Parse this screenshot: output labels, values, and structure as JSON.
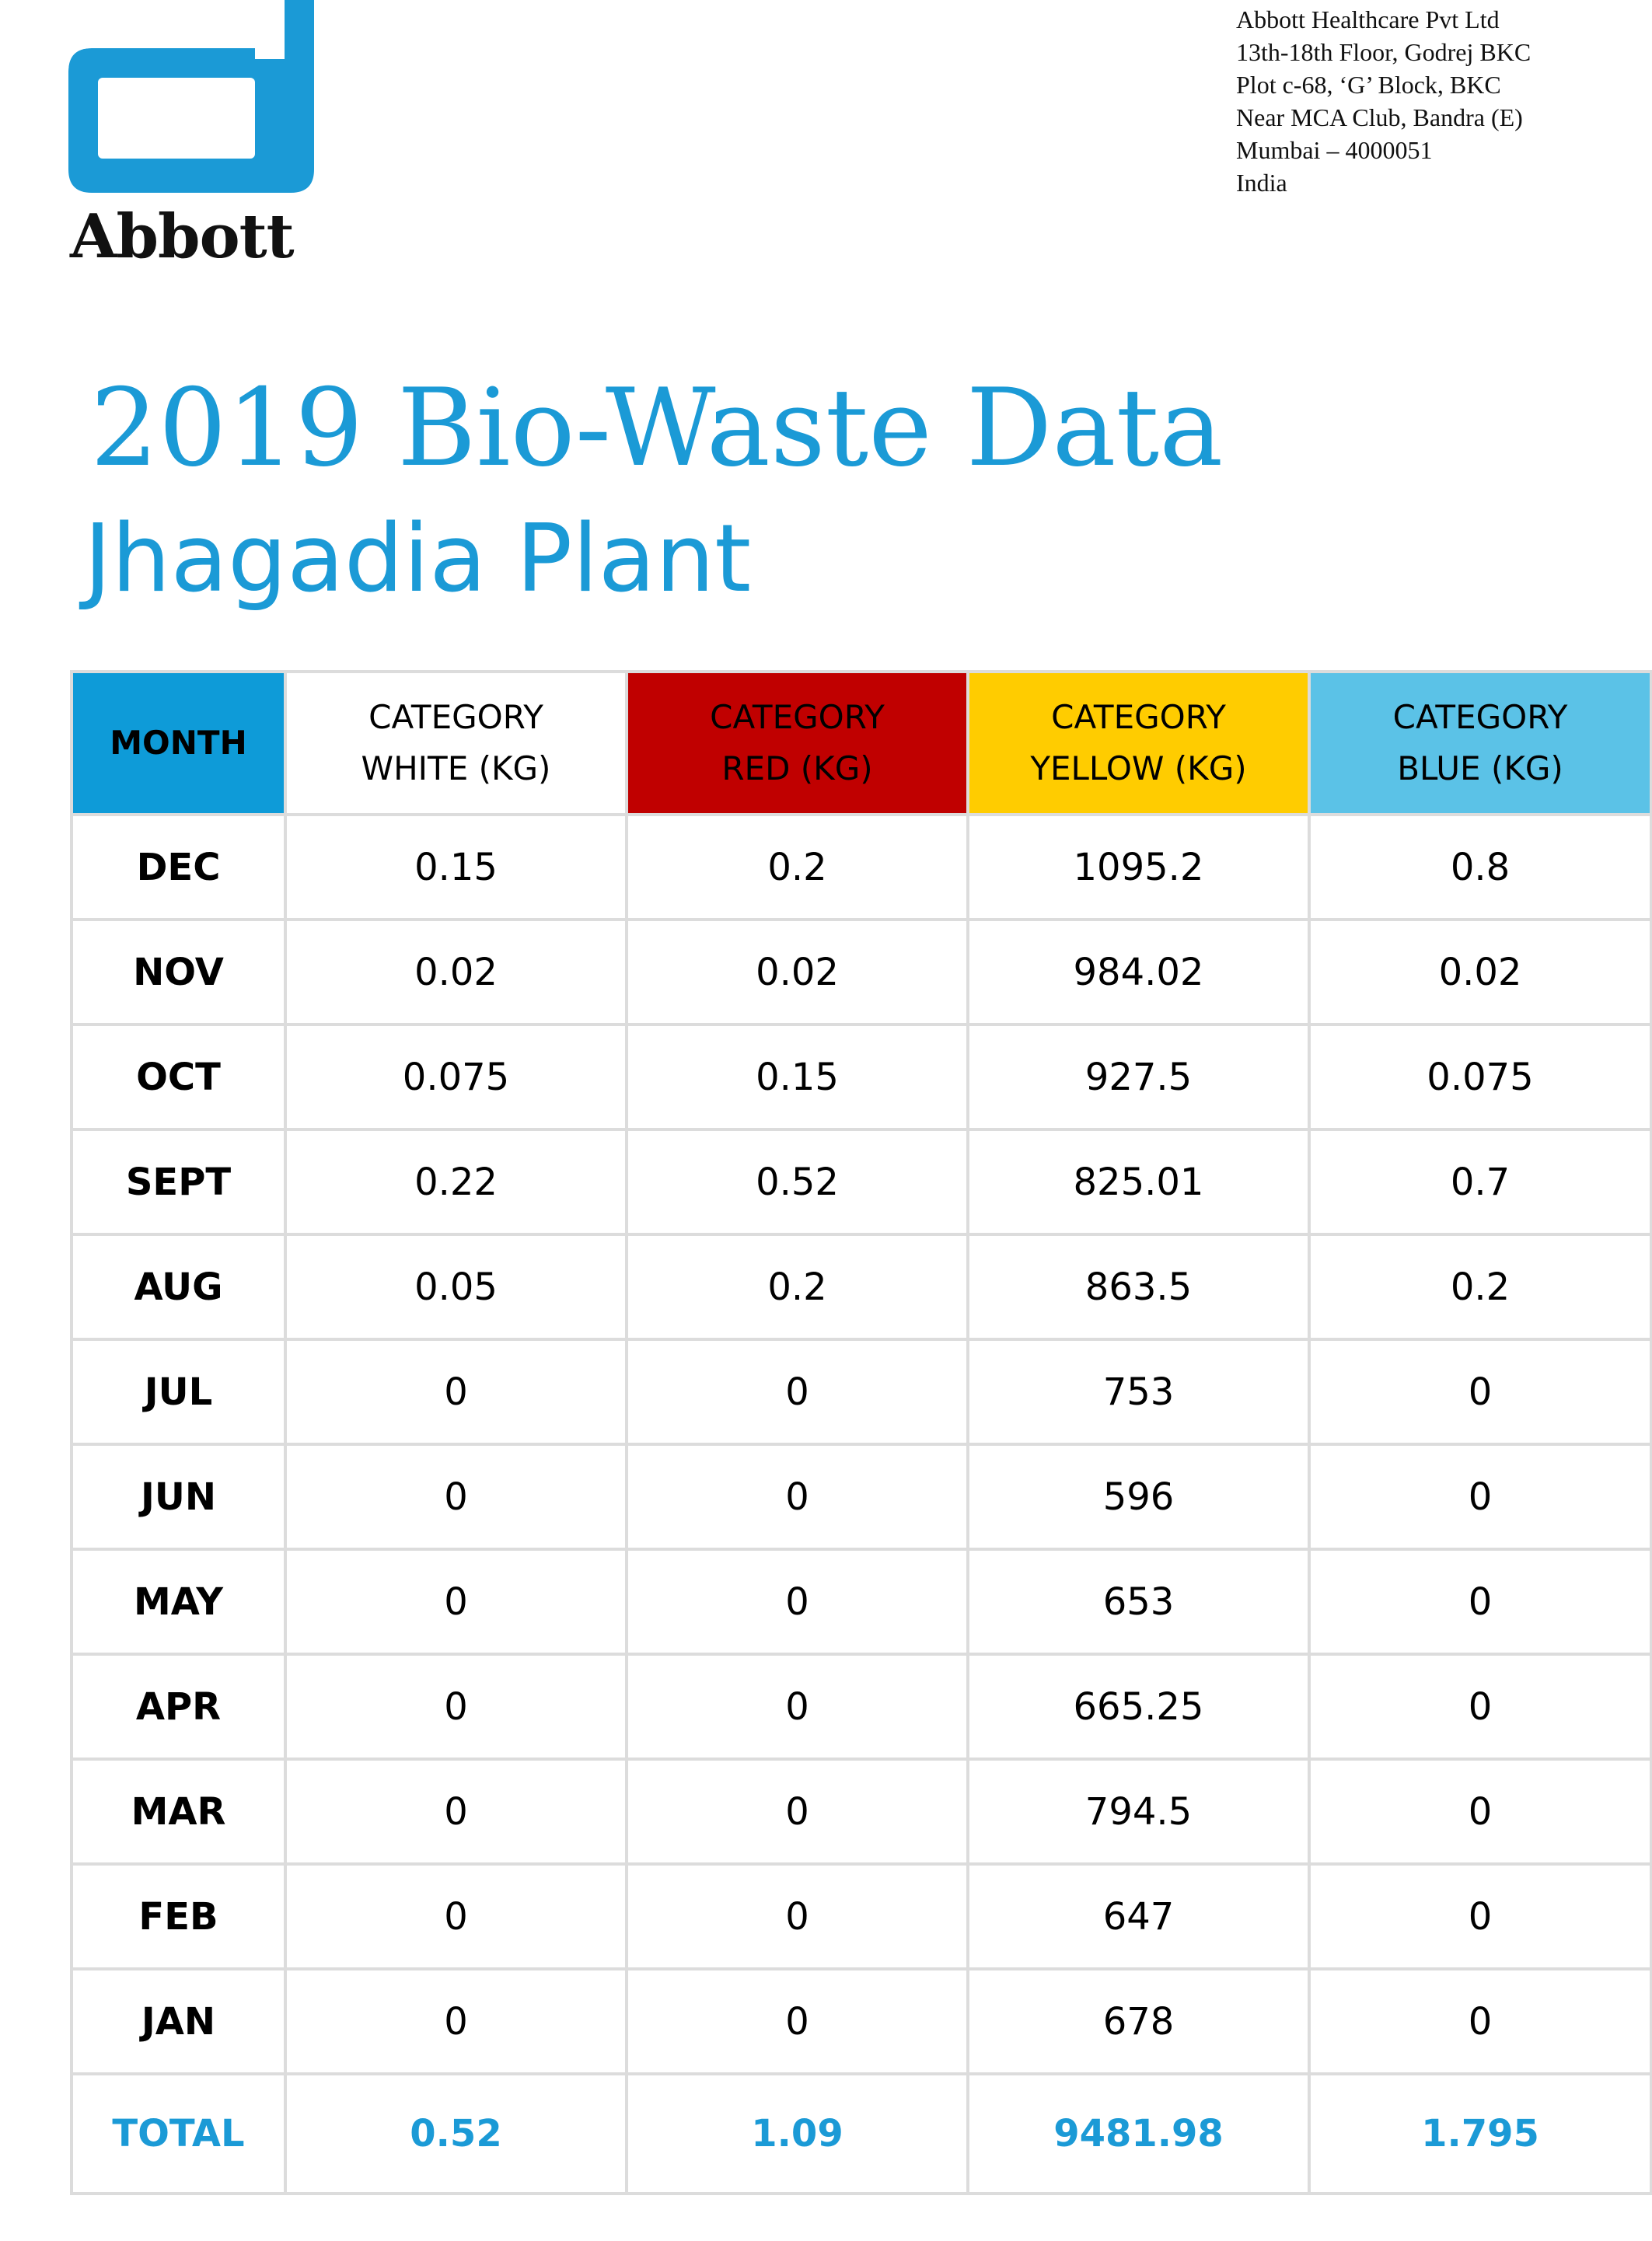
{
  "logo": {
    "wordmark": "Abbott",
    "color": "#1b9ad6"
  },
  "address": [
    "Abbott Healthcare Pvt Ltd",
    "13th-18th Floor, Godrej BKC",
    "Plot c-68, ‘G’ Block, BKC",
    "Near MCA Club, Bandra (E)",
    "Mumbai – 4000051",
    "India"
  ],
  "title": "2019 Bio-Waste Data",
  "subtitle": "Jhagadia Plant",
  "table": {
    "headers": {
      "month": "MONTH",
      "white": [
        "CATEGORY",
        "WHITE (KG)"
      ],
      "red": [
        "CATEGORY",
        "RED (KG)"
      ],
      "yellow": [
        "CATEGORY",
        "YELLOW (KG)"
      ],
      "blue": [
        "CATEGORY",
        "BLUE (KG)"
      ]
    },
    "header_colors": {
      "month": "#0e9bd8",
      "white": "#ffffff",
      "red": "#c00000",
      "yellow": "#ffcc00",
      "blue": "#5bc2e7"
    },
    "rows": [
      {
        "month": "DEC",
        "white": "0.15",
        "red": "0.2",
        "yellow": "1095.2",
        "blue": "0.8"
      },
      {
        "month": "NOV",
        "white": "0.02",
        "red": "0.02",
        "yellow": "984.02",
        "blue": "0.02"
      },
      {
        "month": "OCT",
        "white": "0.075",
        "red": "0.15",
        "yellow": "927.5",
        "blue": "0.075"
      },
      {
        "month": "SEPT",
        "white": "0.22",
        "red": "0.52",
        "yellow": "825.01",
        "blue": "0.7"
      },
      {
        "month": "AUG",
        "white": "0.05",
        "red": "0.2",
        "yellow": "863.5",
        "blue": "0.2"
      },
      {
        "month": "JUL",
        "white": "0",
        "red": "0",
        "yellow": "753",
        "blue": "0"
      },
      {
        "month": "JUN",
        "white": "0",
        "red": "0",
        "yellow": "596",
        "blue": "0"
      },
      {
        "month": "MAY",
        "white": "0",
        "red": "0",
        "yellow": "653",
        "blue": "0"
      },
      {
        "month": "APR",
        "white": "0",
        "red": "0",
        "yellow": "665.25",
        "blue": "0"
      },
      {
        "month": "MAR",
        "white": "0",
        "red": "0",
        "yellow": "794.5",
        "blue": "0"
      },
      {
        "month": "FEB",
        "white": "0",
        "red": "0",
        "yellow": "647",
        "blue": "0"
      },
      {
        "month": "JAN",
        "white": "0",
        "red": "0",
        "yellow": "678",
        "blue": "0"
      }
    ],
    "total": {
      "month": "TOTAL",
      "white": "0.52",
      "red": "1.09",
      "yellow": "9481.98",
      "blue": "1.795"
    }
  }
}
